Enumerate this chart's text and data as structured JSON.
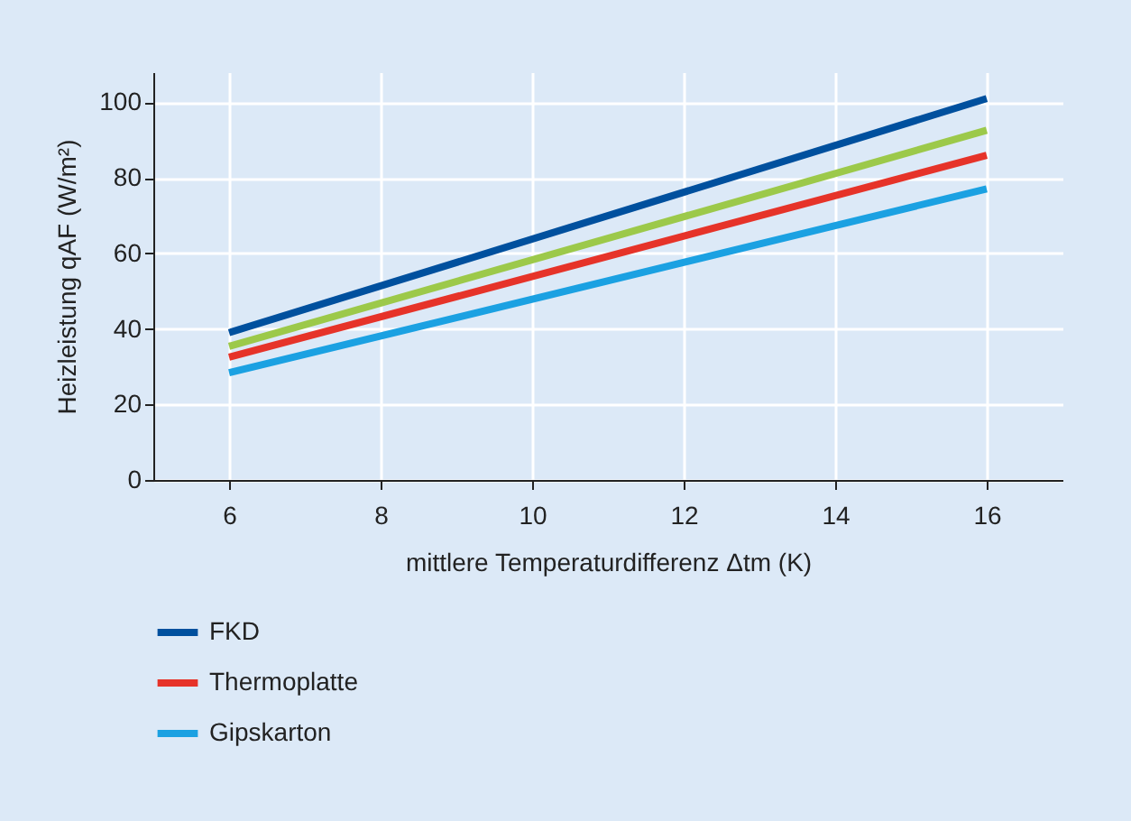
{
  "chart_data": {
    "type": "line",
    "xlabel": "mittlere Temperaturdifferenz Δtm (K)",
    "ylabel": "Heizleistung qAF (W/m²)",
    "x": [
      6,
      16
    ],
    "series": [
      {
        "name": "FKD",
        "color": "#00509e",
        "values": [
          39,
          101
        ]
      },
      {
        "color": "#9cc94a",
        "values": [
          35.4,
          92.6
        ]
      },
      {
        "name": "Thermoplatte",
        "color": "#e63329",
        "values": [
          32.5,
          86
        ]
      },
      {
        "name": "Gipskarton",
        "color": "#1ba1e2",
        "values": [
          28.4,
          77.1
        ]
      }
    ],
    "xlim": [
      5,
      17
    ],
    "xticks": [
      6,
      8,
      10,
      12,
      14,
      16
    ],
    "ylim": [
      0,
      108
    ],
    "yticks": [
      0,
      20,
      40,
      60,
      80,
      100
    ],
    "grid": true,
    "legend": "bottom",
    "marker": "none",
    "line_style": "solid"
  }
}
